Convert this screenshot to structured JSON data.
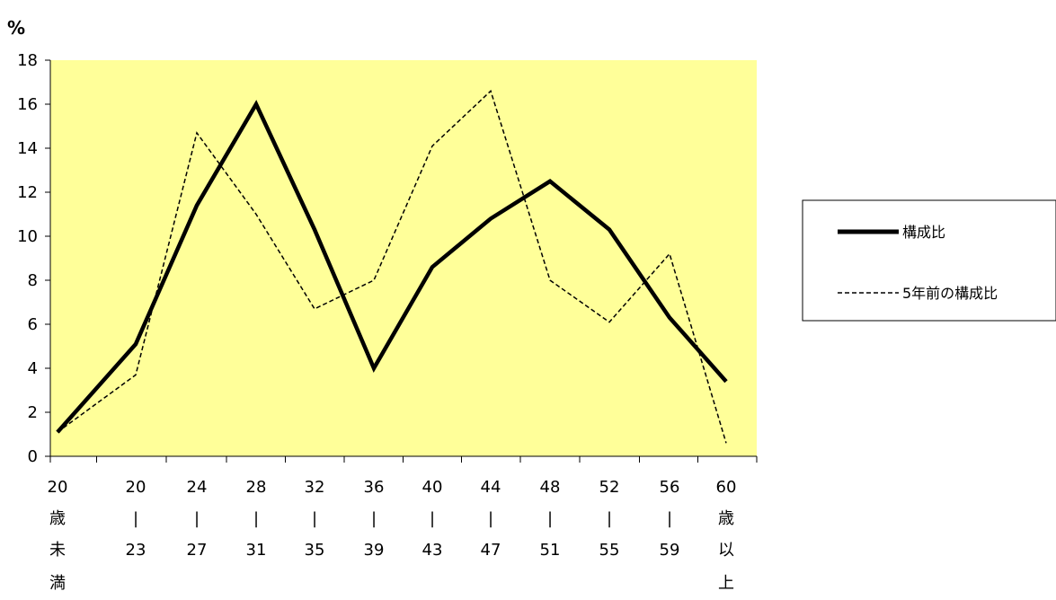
{
  "chart_data": {
    "type": "line",
    "unit_label": "%",
    "ylim": [
      0,
      18
    ],
    "yticks": [
      "0",
      "2",
      "4",
      "6",
      "8",
      "10",
      "12",
      "14",
      "16",
      "18"
    ],
    "categories": [
      [
        "20",
        "歳",
        "未",
        "満"
      ],
      [
        "20",
        "|",
        "23"
      ],
      [
        "24",
        "|",
        "27"
      ],
      [
        "28",
        "|",
        "31"
      ],
      [
        "32",
        "|",
        "35"
      ],
      [
        "36",
        "|",
        "39"
      ],
      [
        "40",
        "|",
        "43"
      ],
      [
        "44",
        "|",
        "47"
      ],
      [
        "48",
        "|",
        "51"
      ],
      [
        "52",
        "|",
        "55"
      ],
      [
        "56",
        "|",
        "59"
      ],
      [
        "60",
        "歳",
        "以",
        "上"
      ]
    ],
    "series": [
      {
        "name": "構成比",
        "style": "solid",
        "color": "#000000",
        "values": [
          1.1,
          5.1,
          11.4,
          16.0,
          10.3,
          4.0,
          8.6,
          10.8,
          12.5,
          10.3,
          6.3,
          3.4
        ]
      },
      {
        "name": "5年前の構成比",
        "style": "dashed",
        "color": "#000000",
        "values": [
          1.1,
          3.7,
          14.7,
          11.0,
          6.7,
          8.0,
          14.1,
          16.6,
          8.0,
          6.1,
          9.2,
          0.6
        ]
      }
    ],
    "plot_background": "#ffff99",
    "grid": false,
    "legend_position": "right"
  }
}
